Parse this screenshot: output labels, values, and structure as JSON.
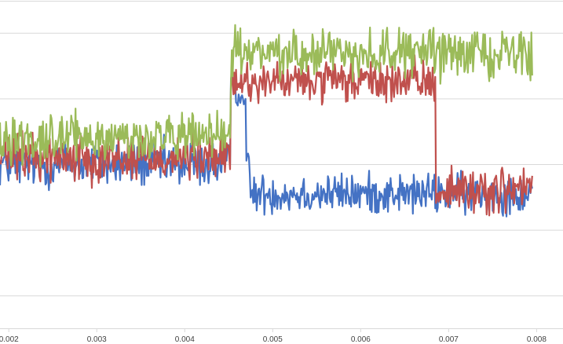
{
  "chart_data": {
    "type": "line",
    "xlabel": "",
    "ylabel": "",
    "title": "",
    "xlim": [
      0.0019,
      0.0083
    ],
    "ylim": [
      0,
      1
    ],
    "x_ticks": [
      0.002,
      0.003,
      0.004,
      0.005,
      0.006,
      0.007,
      0.008
    ],
    "x_tick_labels": [
      "0.002",
      "0.003",
      "0.004",
      "0.005",
      "0.006",
      "0.007",
      "0.008"
    ],
    "y_gridlines": [
      0.1,
      0.3,
      0.5,
      0.7,
      0.9
    ],
    "y_tick_labels_visible": false,
    "legend": "none",
    "grid": "horizontal",
    "x_range": [
      0.0019,
      0.00795
    ],
    "series": [
      {
        "color": "#4472c4",
        "segments": [
          {
            "x": [
              0.0019,
              0.00452
            ],
            "level": 0.5,
            "noise": 0.035
          },
          {
            "x": [
              0.00452,
              0.00458
            ],
            "level": 0.76,
            "noise": 0.01
          },
          {
            "x": [
              0.00458,
              0.0047
            ],
            "level": 0.7,
            "noise": 0.01
          },
          {
            "x": [
              0.0047,
              0.00473
            ],
            "level": 0.52,
            "noise": 0.01
          },
          {
            "x": [
              0.00473,
              0.00795
            ],
            "level": 0.41,
            "noise": 0.03
          }
        ]
      },
      {
        "color": "#c0504d",
        "segments": [
          {
            "x": [
              0.0019,
              0.00452
            ],
            "level": 0.52,
            "noise": 0.035
          },
          {
            "x": [
              0.00452,
              0.00685
            ],
            "level": 0.75,
            "noise": 0.03
          },
          {
            "x": [
              0.00685,
              0.00795
            ],
            "level": 0.42,
            "noise": 0.035
          }
        ]
      },
      {
        "color": "#9bbb59",
        "segments": [
          {
            "x": [
              0.0019,
              0.00452
            ],
            "level": 0.58,
            "noise": 0.035
          },
          {
            "x": [
              0.00452,
              0.00795
            ],
            "level": 0.84,
            "noise": 0.035
          }
        ]
      }
    ]
  }
}
